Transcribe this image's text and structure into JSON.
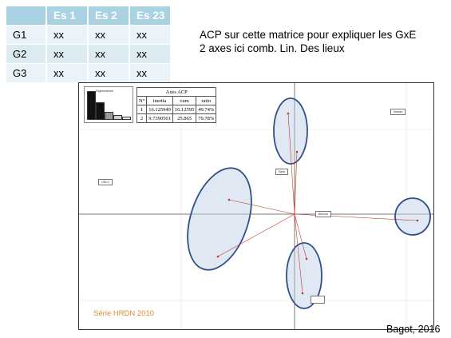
{
  "gxe_table": {
    "headers": [
      "",
      "Es 1",
      "Es 2",
      "Es 23"
    ],
    "rows": [
      [
        "G1",
        "xx",
        "xx",
        "xx"
      ],
      [
        "G2",
        "xx",
        "xx",
        "xx"
      ],
      [
        "G3",
        "xx",
        "xx",
        "xx"
      ]
    ]
  },
  "caption": {
    "line1": "ACP sur cette matrice pour expliquer les GxE",
    "line2": "2 axes ici comb. Lin. Des lieux"
  },
  "figure": {
    "eigen_title": "Eigenvalues",
    "eigen_levels": [
      1.0,
      0.6,
      0.25,
      0.12,
      0.05
    ],
    "axes_table": {
      "title": "Axes ACP",
      "headers": [
        "N°",
        "inertia",
        "cum",
        "ratio"
      ],
      "rows": [
        [
          "1",
          "16.125949",
          "16.12595",
          "49.74%"
        ],
        [
          "2",
          "9.7390501",
          "25.865",
          "79.78%"
        ]
      ]
    },
    "series_label": "Série HRDN 2010",
    "labels": {
      "left": "ORLO",
      "top_right": "Mablan",
      "mid": "Nads",
      "center": "Belnotu"
    }
  },
  "credit": "Bagot, 2016",
  "colors": {
    "table_header": "#a9d2e2",
    "table_row": "#dcebf1",
    "ellipse_fill": "#dfe8f3",
    "ellipse_stroke": "#2f4f86",
    "vector": "#c0392b",
    "series": "#e08a2e"
  }
}
